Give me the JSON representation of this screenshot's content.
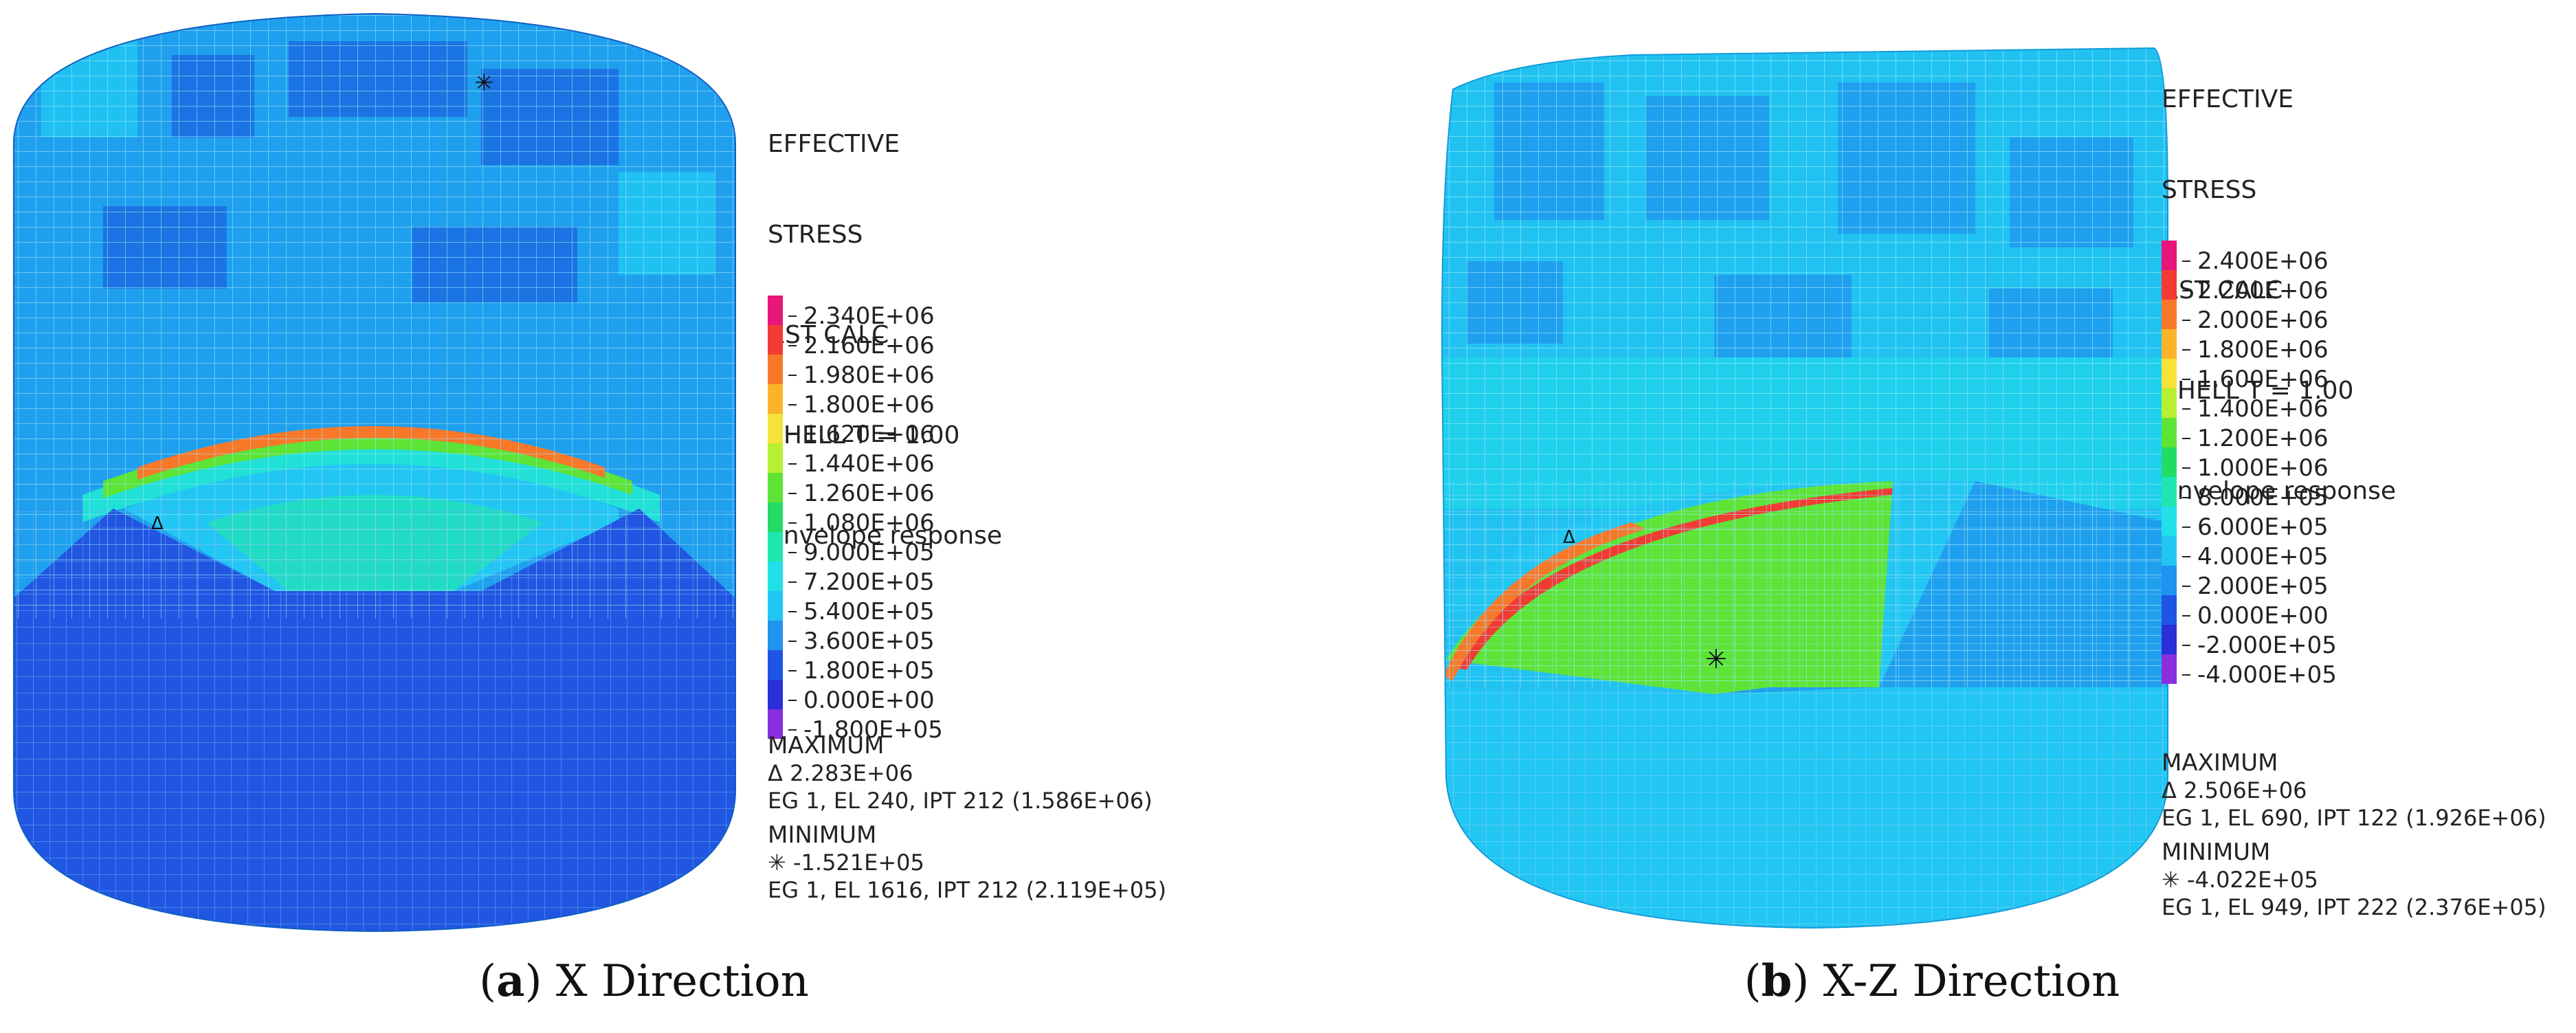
{
  "panels": [
    {
      "caption_letter": "a",
      "caption_text": "X Direction",
      "legend": {
        "title_line1": "EFFECTIVE",
        "title_line2": "STRESS",
        "calc": "RST CALC",
        "shell": "SHELL T = 1.00",
        "response": "Envelope response",
        "ticks": [
          "2.340E+06",
          "2.160E+06",
          "1.980E+06",
          "1.800E+06",
          "1.620E+06",
          "1.440E+06",
          "1.260E+06",
          "1.080E+06",
          "9.000E+05",
          "7.200E+05",
          "5.400E+05",
          "3.600E+05",
          "1.800E+05",
          "0.000E+00",
          "-1.800E+05"
        ],
        "colors": [
          "#e8157a",
          "#f23c33",
          "#f8782a",
          "#fbb42a",
          "#f7e23a",
          "#b7ef32",
          "#5de436",
          "#22dc66",
          "#1fe6b0",
          "#20e0e8",
          "#22c6f3",
          "#1f94ef",
          "#1f55e6",
          "#2a2fd8",
          "#8b2ee0"
        ]
      },
      "maximum": {
        "label": "MAXIMUM",
        "symbol": "Δ",
        "value": "2.283E+06",
        "detail": "EG 1, EL 240, IPT 212 (1.586E+06)"
      },
      "minimum": {
        "label": "MINIMUM",
        "symbol": "✳",
        "value": "-1.521E+05",
        "detail": "EG 1, EL 1616, IPT 212 (2.119E+05)"
      }
    },
    {
      "caption_letter": "b",
      "caption_text": "X-Z Direction",
      "legend": {
        "title_line1": "EFFECTIVE",
        "title_line2": "STRESS",
        "calc": "RST CALC",
        "shell": "SHELL T = 1.00",
        "response": "Envelope response",
        "ticks": [
          "2.400E+06",
          "2.200E+06",
          "2.000E+06",
          "1.800E+06",
          "1.600E+06",
          "1.400E+06",
          "1.200E+06",
          "1.000E+06",
          "8.000E+05",
          "6.000E+05",
          "4.000E+05",
          "2.000E+05",
          "0.000E+00",
          "-2.000E+05",
          "-4.000E+05"
        ],
        "colors": [
          "#e8157a",
          "#f23c33",
          "#f8782a",
          "#fbb42a",
          "#f7e23a",
          "#b7ef32",
          "#5de436",
          "#22dc66",
          "#1fe6b0",
          "#20e0e8",
          "#22c6f3",
          "#1f94ef",
          "#1f55e6",
          "#2a2fd8",
          "#8b2ee0"
        ]
      },
      "maximum": {
        "label": "MAXIMUM",
        "symbol": "Δ",
        "value": "2.506E+06",
        "detail": "EG 1, EL 690, IPT 122 (1.926E+06)"
      },
      "minimum": {
        "label": "MINIMUM",
        "symbol": "✳",
        "value": "-4.022E+05",
        "detail": "EG 1, EL 949, IPT 222 (2.376E+05)"
      }
    }
  ]
}
